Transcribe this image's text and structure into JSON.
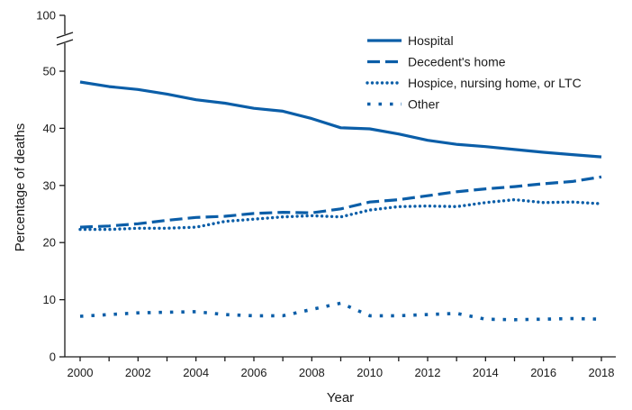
{
  "chart_data": {
    "type": "line",
    "title": "",
    "xlabel": "Year",
    "ylabel": "Percentage of deaths",
    "ylim": [
      0,
      100
    ],
    "axis_break": "between 50 and 100",
    "x": [
      2000,
      2001,
      2002,
      2003,
      2004,
      2005,
      2006,
      2007,
      2008,
      2009,
      2010,
      2011,
      2012,
      2013,
      2014,
      2015,
      2016,
      2017,
      2018
    ],
    "x_ticks": [
      "2000",
      "2002",
      "2004",
      "2006",
      "2008",
      "2010",
      "2012",
      "2014",
      "2016",
      "2018"
    ],
    "y_ticks": [
      "0",
      "10",
      "20",
      "30",
      "40",
      "50",
      "100"
    ],
    "legend_position": "top-right",
    "series": [
      {
        "name": "Hospital",
        "style": "solid",
        "color": "#0b5ea8",
        "values": [
          48.1,
          47.3,
          46.8,
          46.0,
          45.0,
          44.4,
          43.5,
          43.0,
          41.7,
          40.1,
          39.9,
          39.0,
          37.9,
          37.2,
          36.8,
          36.3,
          35.8,
          35.4,
          35.0
        ]
      },
      {
        "name": "Decedent's home",
        "style": "dashed",
        "color": "#0b5ea8",
        "values": [
          22.7,
          22.9,
          23.3,
          23.9,
          24.4,
          24.6,
          25.1,
          25.3,
          25.2,
          25.9,
          27.1,
          27.5,
          28.2,
          28.9,
          29.4,
          29.8,
          30.3,
          30.7,
          31.5
        ]
      },
      {
        "name": "Hospice, nursing home, or LTC",
        "style": "dotted",
        "color": "#0b5ea8",
        "values": [
          22.3,
          22.3,
          22.5,
          22.5,
          22.7,
          23.7,
          24.1,
          24.5,
          24.7,
          24.5,
          25.7,
          26.3,
          26.4,
          26.3,
          27.0,
          27.5,
          27.0,
          27.1,
          26.8
        ]
      },
      {
        "name": "Other",
        "style": "wide-dotted",
        "color": "#0b5ea8",
        "values": [
          7.1,
          7.4,
          7.7,
          7.8,
          7.9,
          7.4,
          7.2,
          7.2,
          8.3,
          9.4,
          7.2,
          7.2,
          7.4,
          7.6,
          6.6,
          6.5,
          6.6,
          6.7,
          6.6
        ]
      }
    ]
  }
}
